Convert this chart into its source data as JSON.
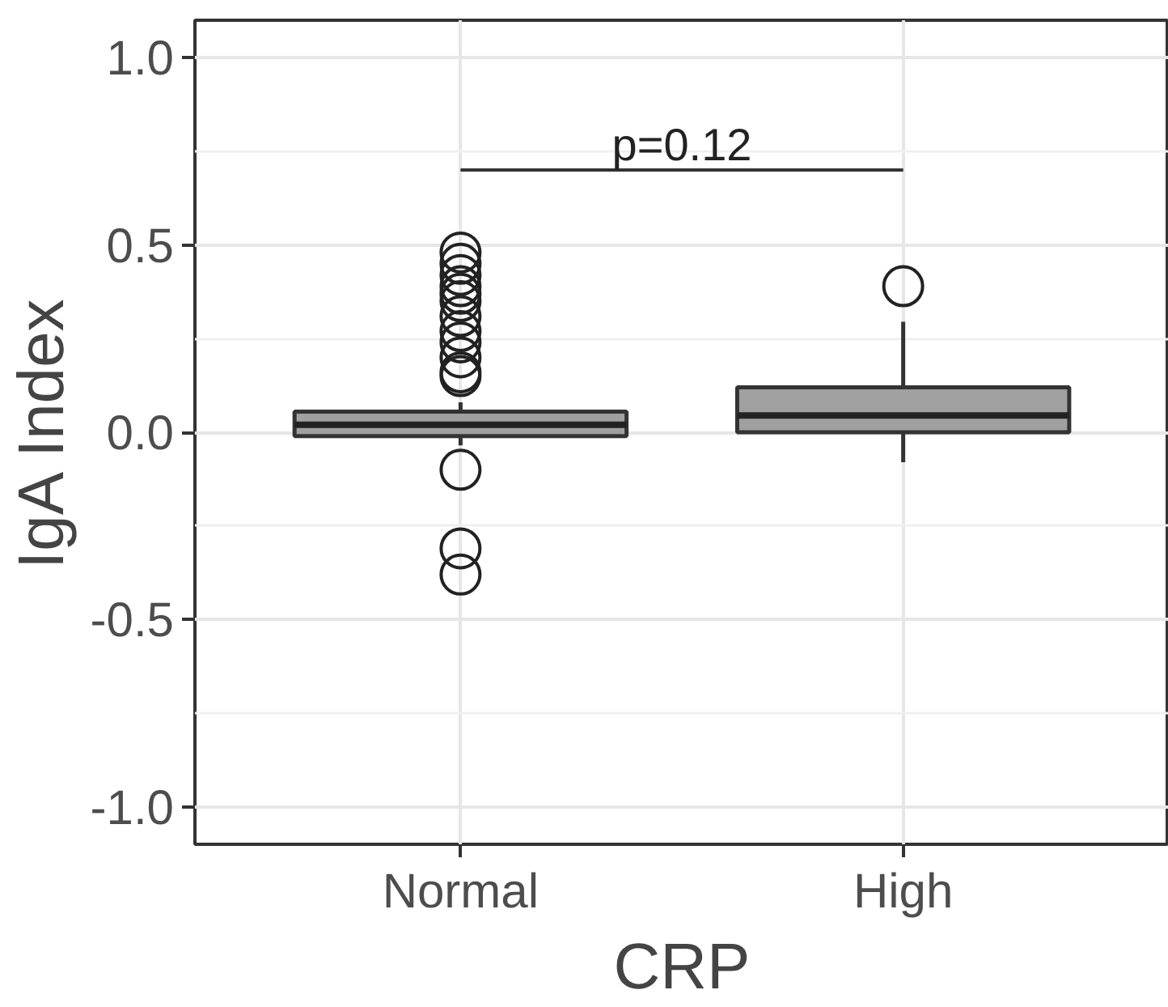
{
  "chart_data": {
    "type": "box",
    "xlabel": "CRP",
    "ylabel": "IgA Index",
    "categories": [
      "Normal",
      "High"
    ],
    "color": "#a0a0a0",
    "boxes": [
      {
        "low": -0.035,
        "q1": -0.01,
        "median": 0.02,
        "q3": 0.055,
        "high": 0.08,
        "outliers": [
          0.48,
          0.45,
          0.42,
          0.39,
          0.37,
          0.35,
          0.31,
          0.27,
          0.24,
          0.2,
          0.16,
          0.15,
          -0.1,
          -0.31,
          -0.38
        ]
      },
      {
        "low": -0.08,
        "q1": 0.0,
        "median": 0.045,
        "q3": 0.12,
        "high": 0.295,
        "outliers": [
          0.39
        ]
      }
    ],
    "ylim": [
      -1.1,
      1.1
    ],
    "yticks": [
      {
        "value": -1.0,
        "label": "-1.0"
      },
      {
        "value": -0.5,
        "label": "-0.5"
      },
      {
        "value": 0.0,
        "label": "0.0"
      },
      {
        "value": 0.5,
        "label": "0.5"
      },
      {
        "value": 1.0,
        "label": "1.0"
      }
    ],
    "grid": true,
    "annotations": [
      "p=0.12"
    ]
  }
}
